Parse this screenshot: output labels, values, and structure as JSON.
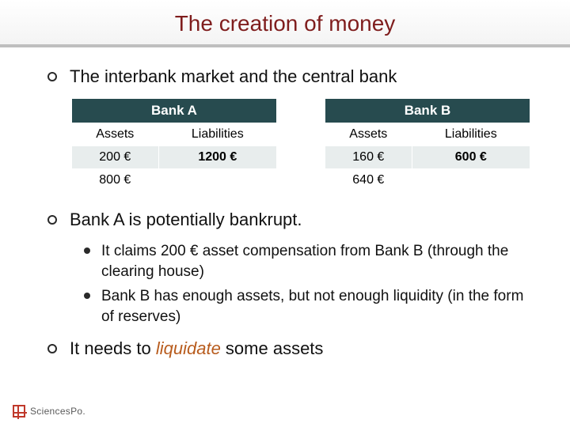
{
  "title": "The creation of money",
  "title_color": "#7f1d1d",
  "subtitle_border_color": "#bfbfbf",
  "lvl1": {
    "item1": "The interbank market and the central bank",
    "item2": "Bank A is potentially bankrupt.",
    "item3_prefix": "It needs to ",
    "item3_emph": "liquidate",
    "item3_suffix": " some assets"
  },
  "lvl2": {
    "c1": "It claims 200 € asset compensation from Bank B (through the clearing house)",
    "c2": "Bank B has enough assets, but not enough liquidity (in the form of reserves)"
  },
  "tables": {
    "header_bg": "#274b4f",
    "header_fg": "#ffffff",
    "row_alt_bg": "#e8eded",
    "bankA": {
      "name": "Bank A",
      "col1": "Assets",
      "col2": "Liabilities",
      "rows": [
        {
          "a": "200 €",
          "l": "1200 €",
          "a_bold": false,
          "l_bold": true
        },
        {
          "a": "800 €",
          "l": "",
          "a_bold": false,
          "l_bold": false
        }
      ]
    },
    "bankB": {
      "name": "Bank B",
      "col1": "Assets",
      "col2": "Liabilities",
      "rows": [
        {
          "a": "160 €",
          "l": "600 €",
          "a_bold": false,
          "l_bold": true
        },
        {
          "a": "640 €",
          "l": "",
          "a_bold": false,
          "l_bold": false
        }
      ]
    }
  },
  "logo_text": "SciencesPo.",
  "emph_color": "#b85c1e"
}
